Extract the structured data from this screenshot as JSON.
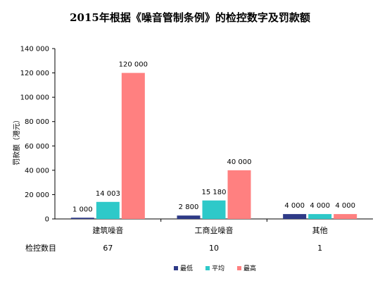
{
  "chart_data": {
    "type": "bar",
    "title": "2015年根据《噪音管制条例》的检控数字及罚款额",
    "ylabel": "罚款额（港元）",
    "xlabel": "",
    "ylim": [
      0,
      140000
    ],
    "yticks": [
      0,
      20000,
      40000,
      60000,
      80000,
      100000,
      120000,
      140000
    ],
    "ytick_labels": [
      "0",
      "20 000",
      "40 000",
      "60 000",
      "80 000",
      "100 000",
      "120 000",
      "140 000"
    ],
    "categories": [
      "建筑噪音",
      "工商业噪音",
      "其他"
    ],
    "series": [
      {
        "name": "最低",
        "color": "#2e3a87",
        "values": [
          1000,
          2800,
          4000
        ],
        "labels": [
          "1 000",
          "2 800",
          "4 000"
        ]
      },
      {
        "name": "平均",
        "color": "#2ec9c9",
        "values": [
          14003,
          15180,
          4000
        ],
        "labels": [
          "14 003",
          "15 180",
          "4 000"
        ]
      },
      {
        "name": "最高",
        "color": "#ff8080",
        "values": [
          120000,
          40000,
          4000
        ],
        "labels": [
          "120 000",
          "40 000",
          "4 000"
        ]
      }
    ],
    "grid": false,
    "legend": "bottom",
    "prosecution_row": {
      "label": "检控数目",
      "values": [
        "67",
        "10",
        "1"
      ]
    }
  }
}
